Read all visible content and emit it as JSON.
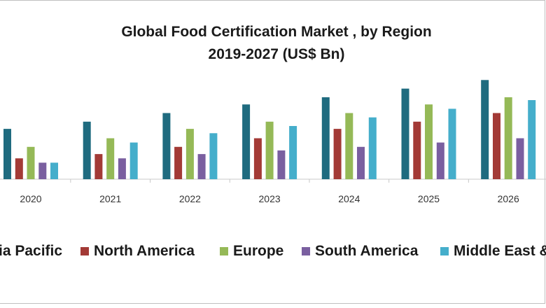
{
  "chart_data": {
    "type": "bar",
    "title_line1": "Global Food Certification Market , by Region",
    "title_line2": "2019-2027 (US$ Bn)",
    "categories": [
      "2020",
      "2021",
      "2022",
      "2023",
      "2024",
      "2025",
      "2026"
    ],
    "series": [
      {
        "name": "ia Pacific",
        "color": "#1f6b7f",
        "values": [
          3.5,
          4.0,
          4.6,
          5.2,
          5.7,
          6.3,
          6.9
        ]
      },
      {
        "name": "North America",
        "color": "#a33a36",
        "values": [
          1.45,
          1.75,
          2.25,
          2.85,
          3.5,
          4.0,
          4.6
        ]
      },
      {
        "name": "Europe",
        "color": "#95b957",
        "values": [
          2.25,
          2.85,
          3.5,
          4.0,
          4.6,
          5.2,
          5.7
        ]
      },
      {
        "name": "South America",
        "color": "#7a5fa0",
        "values": [
          1.15,
          1.45,
          1.75,
          2.0,
          2.25,
          2.55,
          2.85
        ]
      },
      {
        "name": "Middle East &",
        "color": "#45aecb",
        "values": [
          1.15,
          2.55,
          3.2,
          3.7,
          4.3,
          4.9,
          5.5
        ]
      }
    ],
    "ylim": [
      0,
      7.4
    ],
    "grid": false,
    "legend_position": "bottom"
  }
}
